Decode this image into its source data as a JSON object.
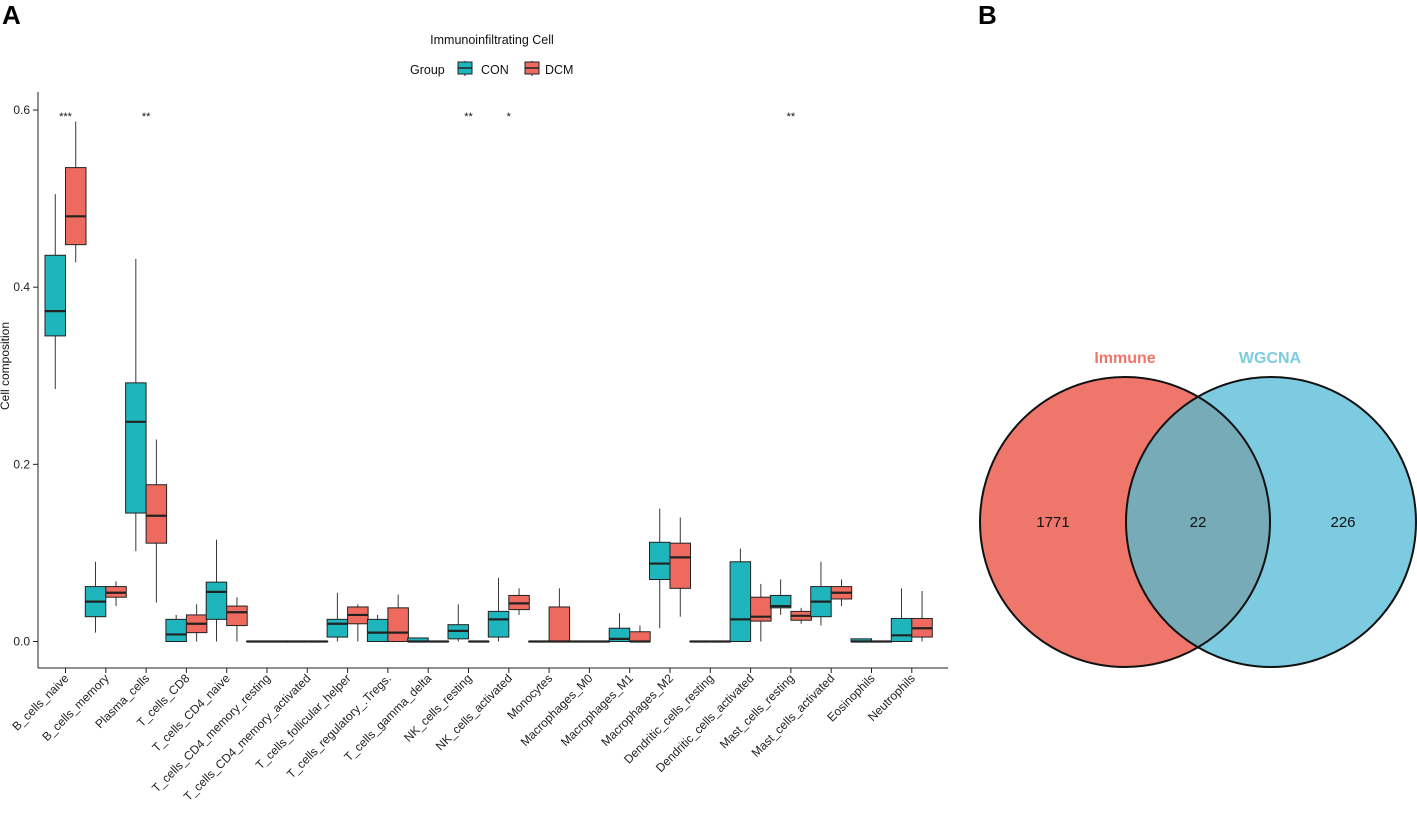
{
  "panels": {
    "a_label": "A",
    "b_label": "B"
  },
  "chart_data": [
    {
      "type": "box",
      "title": "Immunoinfiltrating Cell",
      "legend": {
        "title": "Group",
        "entries": [
          {
            "name": "CON",
            "color": "#1fb5bc"
          },
          {
            "name": "DCM",
            "color": "#ee6a5e"
          }
        ],
        "placement": "top-center"
      },
      "ylabel": "Cell composition",
      "xlabel": "",
      "ylim": [
        -0.03,
        0.61
      ],
      "yticks": [
        "0.0",
        "0.2",
        "0.4",
        "0.6"
      ],
      "ytick_values": [
        0.0,
        0.2,
        0.4,
        0.6
      ],
      "categories": [
        "B_cells_naive",
        "B_cells_memory",
        "Plasma_cells",
        "T_cells_CD8",
        "T_cells_CD4_naive",
        "T_cells_CD4_memory_resting",
        "T_cells_CD4_memory_activated",
        "T_cells_follicular_helper",
        "T_cells_regulatory_.Tregs.",
        "T_cells_gamma_delta",
        "NK_cells_resting",
        "NK_cells_activated",
        "Monocytes",
        "Macrophages_M0",
        "Macrophages_M1",
        "Macrophages_M2",
        "Dendritic_cells_resting",
        "Dendritic_cells_activated",
        "Mast_cells_resting",
        "Mast_cells_activated",
        "Eosinophils",
        "Neutrophils"
      ],
      "significance": [
        "***",
        "",
        "**",
        "",
        "",
        "",
        "",
        "",
        "",
        "",
        "**",
        "*",
        "",
        "",
        "",
        "",
        "",
        "",
        "**",
        "",
        "",
        ""
      ],
      "series": [
        {
          "name": "CON",
          "boxes": [
            [
              0.285,
              0.345,
              0.373,
              0.436,
              0.505
            ],
            [
              0.01,
              0.028,
              0.045,
              0.062,
              0.09
            ],
            [
              0.102,
              0.145,
              0.248,
              0.292,
              0.432
            ],
            [
              0.0,
              0.0,
              0.008,
              0.025,
              0.03
            ],
            [
              0.0,
              0.025,
              0.056,
              0.067,
              0.115
            ],
            [
              0.0,
              0.0,
              0.0,
              0.0,
              0.0
            ],
            [
              0.0,
              0.0,
              0.0,
              0.0,
              0.0
            ],
            [
              0.0,
              0.005,
              0.02,
              0.025,
              0.055
            ],
            [
              0.0,
              0.0,
              0.01,
              0.025,
              0.03
            ],
            [
              0.0,
              0.0,
              0.0,
              0.004,
              0.004
            ],
            [
              0.0,
              0.003,
              0.012,
              0.019,
              0.042
            ],
            [
              0.0,
              0.005,
              0.025,
              0.034,
              0.072
            ],
            [
              0.0,
              0.0,
              0.0,
              0.0,
              0.0
            ],
            [
              0.0,
              0.0,
              0.0,
              0.0,
              0.0
            ],
            [
              0.0,
              0.0,
              0.003,
              0.015,
              0.032
            ],
            [
              0.015,
              0.07,
              0.088,
              0.112,
              0.15
            ],
            [
              0.0,
              0.0,
              0.0,
              0.0,
              0.0
            ],
            [
              0.0,
              0.0,
              0.025,
              0.09,
              0.105
            ],
            [
              0.03,
              0.038,
              0.04,
              0.052,
              0.07
            ],
            [
              0.018,
              0.028,
              0.045,
              0.062,
              0.09
            ],
            [
              0.0,
              0.0,
              0.0,
              0.003,
              0.003
            ],
            [
              0.0,
              0.0,
              0.007,
              0.026,
              0.06
            ]
          ]
        },
        {
          "name": "DCM",
          "boxes": [
            [
              0.428,
              0.448,
              0.48,
              0.535,
              0.587
            ],
            [
              0.04,
              0.05,
              0.055,
              0.062,
              0.068
            ],
            [
              0.044,
              0.111,
              0.142,
              0.177,
              0.228
            ],
            [
              0.0,
              0.01,
              0.02,
              0.03,
              0.042
            ],
            [
              0.0,
              0.018,
              0.033,
              0.04,
              0.05
            ],
            [
              0.0,
              0.0,
              0.0,
              0.0,
              0.0
            ],
            [
              0.0,
              0.0,
              0.0,
              0.0,
              0.0
            ],
            [
              0.0,
              0.02,
              0.03,
              0.039,
              0.042
            ],
            [
              0.0,
              0.0,
              0.01,
              0.038,
              0.053
            ],
            [
              0.0,
              0.0,
              0.0,
              0.0,
              0.0
            ],
            [
              0.0,
              0.0,
              0.0,
              0.0,
              0.0
            ],
            [
              0.03,
              0.036,
              0.043,
              0.052,
              0.06
            ],
            [
              0.0,
              0.0,
              0.0,
              0.039,
              0.06
            ],
            [
              0.0,
              0.0,
              0.0,
              0.0,
              0.0
            ],
            [
              0.0,
              0.0,
              0.0,
              0.011,
              0.018
            ],
            [
              0.028,
              0.06,
              0.095,
              0.111,
              0.14
            ],
            [
              0.0,
              0.0,
              0.0,
              0.0,
              0.0
            ],
            [
              0.0,
              0.023,
              0.028,
              0.05,
              0.065
            ],
            [
              0.02,
              0.024,
              0.029,
              0.034,
              0.038
            ],
            [
              0.04,
              0.048,
              0.055,
              0.062,
              0.07
            ],
            [
              0.0,
              0.0,
              0.0,
              0.0,
              0.0
            ],
            [
              0.0,
              0.005,
              0.015,
              0.026,
              0.057
            ]
          ]
        }
      ],
      "box_format": "[whisker_low, q1, median, q3, whisker_high]"
    },
    {
      "type": "venn",
      "sets": [
        {
          "name": "Immune",
          "only_count": "1771",
          "color": "#ee766a"
        },
        {
          "name": "WGCNA",
          "only_count": "226",
          "color": "#7ccbe0"
        }
      ],
      "intersection": "22",
      "overlap_color": "#77abb8"
    }
  ]
}
